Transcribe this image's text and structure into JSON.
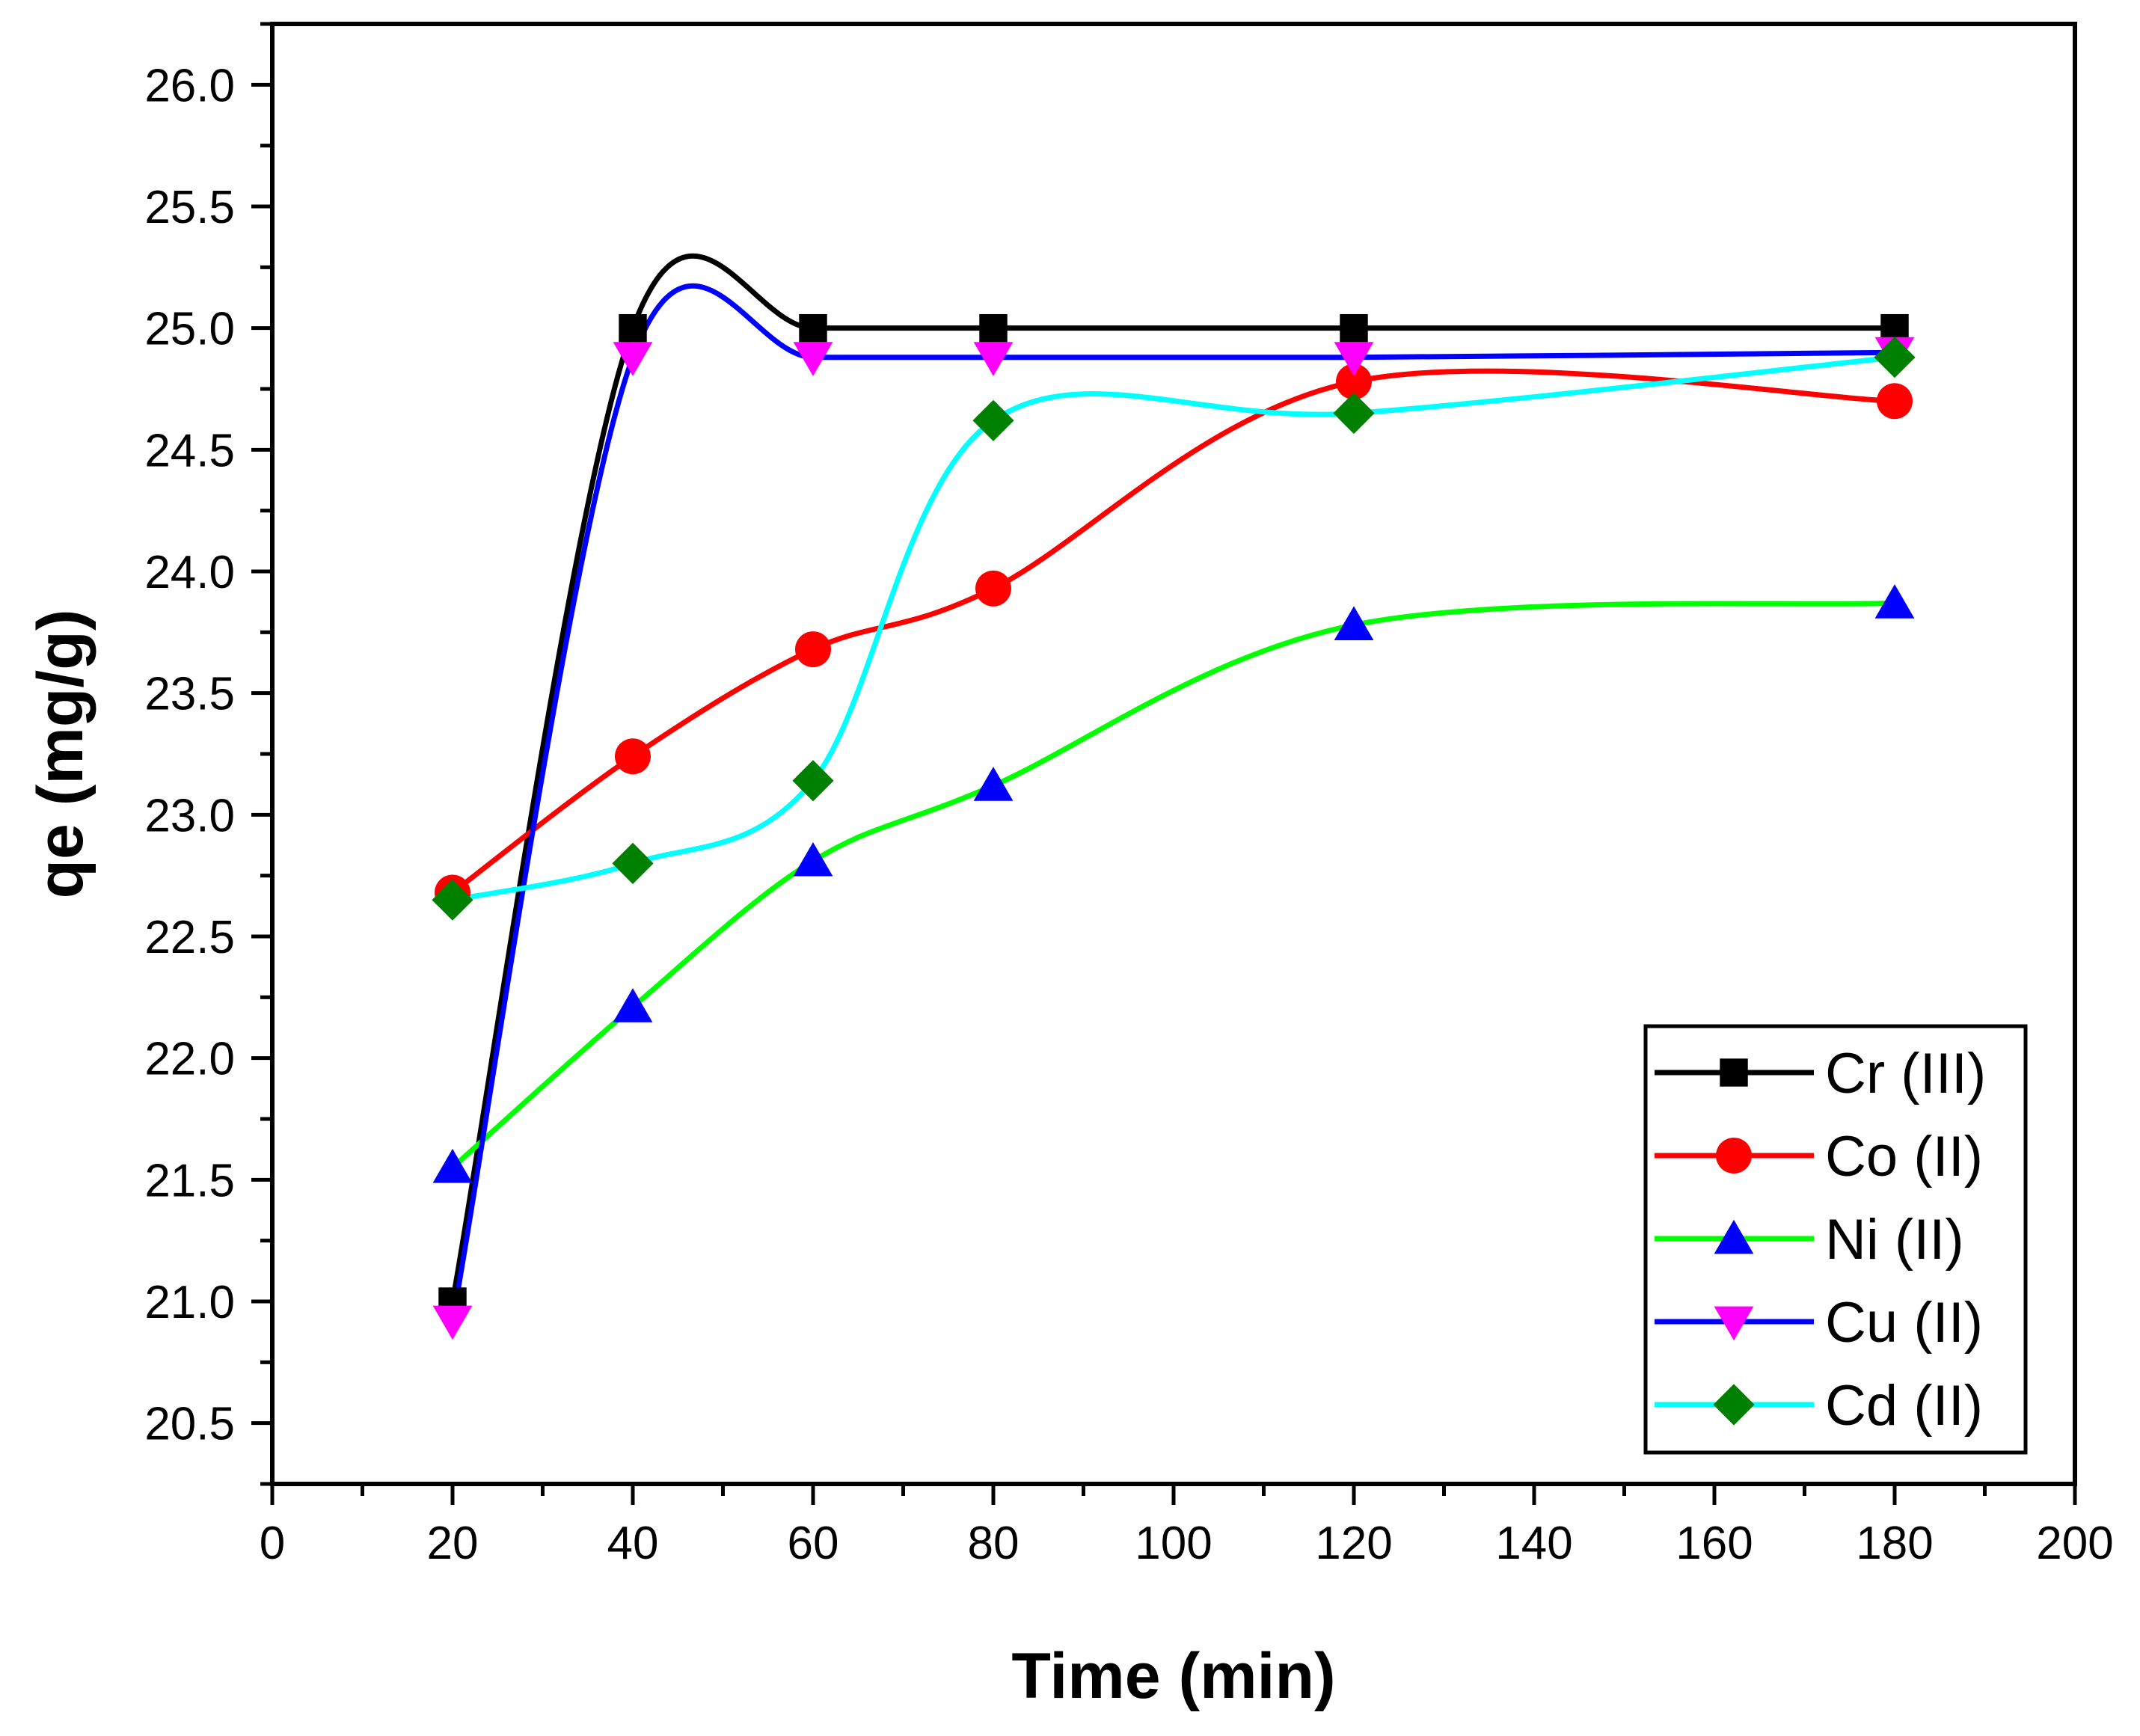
{
  "chart_data": {
    "type": "line",
    "title": "",
    "xlabel": "Time (min)",
    "ylabel": "qe (mg/g)",
    "xlim": [
      0,
      200
    ],
    "ylim": [
      20.25,
      26.25
    ],
    "x_ticks": [
      0,
      20,
      40,
      60,
      80,
      100,
      120,
      140,
      160,
      180,
      200
    ],
    "x_tick_labels": [
      "0",
      "20",
      "40",
      "60",
      "80",
      "100",
      "120",
      "140",
      "160",
      "180",
      "200"
    ],
    "y_ticks": [
      20.5,
      21.0,
      21.5,
      22.0,
      22.5,
      23.0,
      23.5,
      24.0,
      24.5,
      25.0,
      25.5,
      26.0
    ],
    "y_tick_labels": [
      "20.5",
      "21.0",
      "21.5",
      "22.0",
      "22.5",
      "23.0",
      "23.5",
      "24.0",
      "24.5",
      "25.0",
      "25.5",
      "26.0"
    ],
    "grid": false,
    "legend_position": "bottom-right",
    "x": [
      20,
      40,
      60,
      80,
      120,
      180
    ],
    "series": [
      {
        "name": "Cr (III)",
        "color": "#000000",
        "marker": "square",
        "values": [
          21.0,
          25.0,
          25.0,
          25.0,
          25.0,
          25.0
        ]
      },
      {
        "name": "Co (II)",
        "color": "#ff0000",
        "marker": "circle",
        "values": [
          22.68,
          23.24,
          23.68,
          23.93,
          24.78,
          24.7
        ]
      },
      {
        "name": "Ni (II)",
        "color": "#00ff00",
        "marker_color": "#0000ff",
        "marker": "triangle-up",
        "values": [
          21.55,
          22.21,
          22.81,
          23.12,
          23.78,
          23.87
        ]
      },
      {
        "name": "Cu (II)",
        "color": "#0000ff",
        "marker_color": "#ff00ff",
        "marker": "triangle-down",
        "values": [
          20.92,
          24.88,
          24.88,
          24.88,
          24.88,
          24.9
        ]
      },
      {
        "name": "Cd (II)",
        "color": "#00ffff",
        "marker_color": "#008000",
        "marker": "diamond",
        "values": [
          22.65,
          22.8,
          23.14,
          24.62,
          24.65,
          24.88
        ]
      }
    ]
  }
}
